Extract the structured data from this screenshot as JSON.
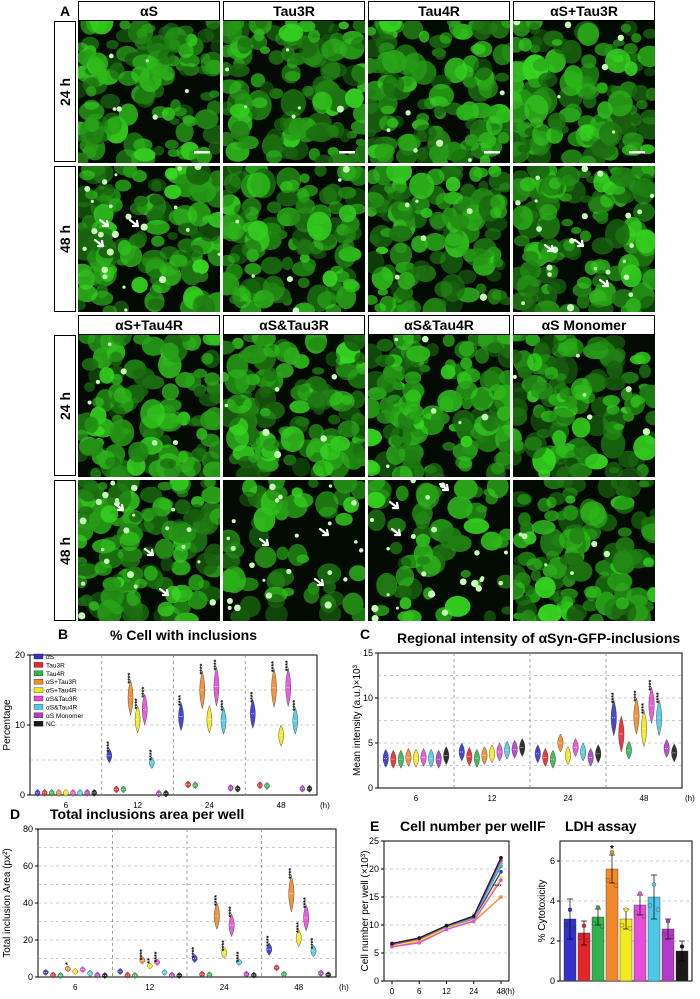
{
  "panel_letters": {
    "a": "A",
    "b": "B",
    "c": "C",
    "d": "D",
    "e": "E",
    "f": "F"
  },
  "top_block": {
    "columns": [
      "αS",
      "Tau3R",
      "Tau4R",
      "αS+Tau3R"
    ],
    "rows": [
      "24 h",
      "48 h"
    ]
  },
  "bottom_block": {
    "columns": [
      "αS+Tau4R",
      "αS&Tau3R",
      "αS&Tau4R",
      "αS Monomer"
    ],
    "rows": [
      "24 h",
      "48 h"
    ]
  },
  "colors": {
    "aS": "#3333cc",
    "Tau3R": "#e6262b",
    "Tau4R": "#33b34d",
    "aS_Tau3R": "#f2892a",
    "aS_Tau4R": "#f2ea1a",
    "aS_amp_Tau3R": "#e64dd9",
    "aS_amp_Tau4R": "#4dc8e6",
    "aS_Monomer": "#b23cc8",
    "NC": "#1a1a1a",
    "micro_bg": "#020a02",
    "cell": "#33b02a"
  },
  "chart_data": [
    {
      "id": "B",
      "type": "violin",
      "title": "% Cell with inclusions",
      "ylabel": "Percentage",
      "xlabel": "(h)",
      "ylim": [
        0,
        20
      ],
      "yticks": [
        "0",
        "10",
        "20"
      ],
      "categories": [
        "6",
        "12",
        "24",
        "48"
      ],
      "legend": [
        "αS",
        "Tau3R",
        "Tau4R",
        "αS+Tau3R",
        "αS+Tau4R",
        "αS&Tau3R",
        "αS&Tau4R",
        "αS Monomer",
        "NC"
      ],
      "series": [
        {
          "name": "αS",
          "values": [
            0.3,
            5.6,
            11.2,
            11.6
          ],
          "sig": [
            "",
            "****",
            "****",
            "****"
          ]
        },
        {
          "name": "Tau3R",
          "values": [
            0.3,
            0.8,
            1.5,
            1.4
          ],
          "sig": [
            "",
            "",
            "",
            ""
          ]
        },
        {
          "name": "Tau4R",
          "values": [
            0.3,
            0.8,
            1.4,
            1.3
          ],
          "sig": [
            "",
            "",
            "",
            ""
          ]
        },
        {
          "name": "αS+Tau3R",
          "values": [
            0.3,
            13.9,
            15.0,
            15.3
          ],
          "sig": [
            "",
            "****",
            "****",
            "****"
          ]
        },
        {
          "name": "αS+Tau4R",
          "values": [
            0.3,
            10.8,
            10.8,
            8.5
          ],
          "sig": [
            "",
            "****",
            "",
            ""
          ]
        },
        {
          "name": "αS&Tau3R",
          "values": [
            0.3,
            12.2,
            15.5,
            15.4
          ],
          "sig": [
            "",
            "****",
            "****",
            "****"
          ]
        },
        {
          "name": "αS&Tau4R",
          "values": [
            0.3,
            4.6,
            10.6,
            10.6
          ],
          "sig": [
            "",
            "****",
            "****",
            "****"
          ]
        },
        {
          "name": "αS Monomer",
          "values": [
            0.3,
            0.2,
            1.0,
            0.9
          ],
          "sig": [
            "",
            "",
            "",
            ""
          ]
        },
        {
          "name": "NC",
          "values": [
            0.3,
            0.2,
            0.9,
            0.9
          ],
          "sig": [
            "",
            "",
            "",
            ""
          ]
        }
      ]
    },
    {
      "id": "C",
      "type": "violin",
      "title": "Regional intensity of αSyn-GFP-inclusions",
      "ylabel": "Mean intensity (a.u.)×10³",
      "xlabel": "(h)",
      "ylim": [
        0,
        15
      ],
      "yticks": [
        "0",
        "5",
        "10",
        "15"
      ],
      "categories": [
        "6",
        "12",
        "24",
        "48"
      ],
      "series": [
        {
          "name": "αS",
          "values": [
            3.3,
            4.0,
            3.8,
            7.8
          ],
          "sig": [
            "",
            "",
            "",
            "****"
          ]
        },
        {
          "name": "Tau3R",
          "values": [
            3.2,
            3.5,
            3.4,
            6.0
          ],
          "sig": [
            "",
            "",
            "",
            ""
          ]
        },
        {
          "name": "Tau4R",
          "values": [
            3.2,
            3.3,
            3.2,
            4.2
          ],
          "sig": [
            "",
            "",
            "",
            ""
          ]
        },
        {
          "name": "αS+Tau3R",
          "values": [
            3.4,
            3.6,
            5.0,
            8.0
          ],
          "sig": [
            "",
            "",
            "",
            "****"
          ]
        },
        {
          "name": "αS+Tau4R",
          "values": [
            3.3,
            3.8,
            3.6,
            6.6
          ],
          "sig": [
            "",
            "",
            "",
            "****"
          ]
        },
        {
          "name": "αS&Tau3R",
          "values": [
            3.4,
            4.0,
            4.5,
            9.2
          ],
          "sig": [
            "",
            "",
            "",
            "****"
          ]
        },
        {
          "name": "αS&Tau4R",
          "values": [
            3.3,
            4.2,
            4.0,
            7.8
          ],
          "sig": [
            "",
            "",
            "",
            "****"
          ]
        },
        {
          "name": "αS Monomer",
          "values": [
            3.2,
            4.3,
            3.4,
            4.4
          ],
          "sig": [
            "",
            "",
            "",
            ""
          ]
        },
        {
          "name": "NC",
          "values": [
            3.6,
            4.5,
            3.8,
            3.9
          ],
          "sig": [
            "",
            "",
            "",
            ""
          ]
        }
      ]
    },
    {
      "id": "D",
      "type": "violin",
      "title": "Total inclusions area per well",
      "ylabel": "Total inclusion Area (px²)",
      "xlabel": "(h)",
      "ylim": [
        0,
        80
      ],
      "yticks": [
        "0",
        "20",
        "40",
        "60",
        "80"
      ],
      "categories": [
        "6",
        "12",
        "24",
        "48"
      ],
      "series": [
        {
          "name": "αS",
          "values": [
            2.5,
            3.0,
            10,
            15
          ],
          "sig": [
            "",
            "",
            "****",
            "****"
          ]
        },
        {
          "name": "Tau3R",
          "values": [
            1.0,
            1.0,
            1.5,
            5.0
          ],
          "sig": [
            "",
            "",
            "",
            ""
          ]
        },
        {
          "name": "Tau4R",
          "values": [
            0.8,
            0.8,
            1.2,
            1.5
          ],
          "sig": [
            "",
            "",
            "",
            ""
          ]
        },
        {
          "name": "αS+Tau3R",
          "values": [
            4.5,
            9.0,
            33,
            45
          ],
          "sig": [
            "*",
            "****",
            "****",
            "****"
          ]
        },
        {
          "name": "αS+Tau4R",
          "values": [
            3.0,
            6.0,
            13,
            21
          ],
          "sig": [
            "",
            "**",
            "****",
            "****"
          ]
        },
        {
          "name": "αS&Tau3R",
          "values": [
            4.0,
            8.0,
            28,
            32
          ],
          "sig": [
            "",
            "****",
            "****",
            "****"
          ]
        },
        {
          "name": "αS&Tau4R",
          "values": [
            2.0,
            2.5,
            8,
            14
          ],
          "sig": [
            "",
            "",
            "****",
            "****"
          ]
        },
        {
          "name": "αS Monomer",
          "values": [
            1.0,
            1.0,
            1.5,
            2.0
          ],
          "sig": [
            "",
            "",
            "",
            ""
          ]
        },
        {
          "name": "NC",
          "values": [
            0.8,
            0.8,
            1.0,
            1.2
          ],
          "sig": [
            "",
            "",
            "",
            ""
          ]
        }
      ]
    },
    {
      "id": "E",
      "type": "line",
      "title": "Cell number per well",
      "ylabel": "Cell number per well (×10³)",
      "xlabel": "(h)",
      "ylim": [
        0,
        25
      ],
      "yticks": [
        "0",
        "5",
        "10",
        "15",
        "20",
        "25"
      ],
      "x": [
        "0",
        "6",
        "12",
        "24",
        "48"
      ],
      "series": [
        {
          "name": "αS",
          "values": [
            6.3,
            7.3,
            9.5,
            11.0,
            19.5
          ]
        },
        {
          "name": "Tau3R",
          "values": [
            6.5,
            7.5,
            9.8,
            11.5,
            22.0
          ]
        },
        {
          "name": "Tau4R",
          "values": [
            6.4,
            7.4,
            9.6,
            11.3,
            20.5
          ]
        },
        {
          "name": "αS+Tau3R",
          "values": [
            6.2,
            7.0,
            9.3,
            10.6,
            15.0
          ]
        },
        {
          "name": "αS+Tau4R",
          "values": [
            6.3,
            7.2,
            9.4,
            10.9,
            18.5
          ]
        },
        {
          "name": "αS&Tau3R",
          "values": [
            6.1,
            6.8,
            9.2,
            10.7,
            18.0
          ]
        },
        {
          "name": "αS&Tau4R",
          "values": [
            6.6,
            7.6,
            9.7,
            11.2,
            21.0
          ]
        },
        {
          "name": "αS Monomer",
          "values": [
            6.5,
            7.5,
            9.8,
            11.4,
            21.5
          ]
        },
        {
          "name": "NC",
          "values": [
            6.7,
            7.7,
            9.9,
            11.6,
            22.0
          ]
        }
      ],
      "annotation": "****"
    },
    {
      "id": "F",
      "type": "bar",
      "title": "LDH assay",
      "ylabel": "% Cytotoxicity",
      "ylim": [
        0,
        7
      ],
      "yticks": [
        "0",
        "2",
        "4",
        "6"
      ],
      "categories": [
        "αS",
        "Tau3R",
        "Tau4R",
        "αS+Tau3R",
        "αS+Tau4R",
        "αS&Tau3R",
        "αS&Tau4R",
        "αS Monomer",
        "NC"
      ],
      "values": [
        3.1,
        2.4,
        3.2,
        5.6,
        3.1,
        3.8,
        4.2,
        2.6,
        1.5
      ],
      "errors": [
        1.0,
        0.6,
        0.4,
        0.7,
        0.5,
        0.5,
        1.1,
        0.5,
        0.5
      ],
      "sig": [
        "",
        "",
        "",
        "*",
        "",
        "",
        "",
        "",
        ""
      ]
    }
  ]
}
